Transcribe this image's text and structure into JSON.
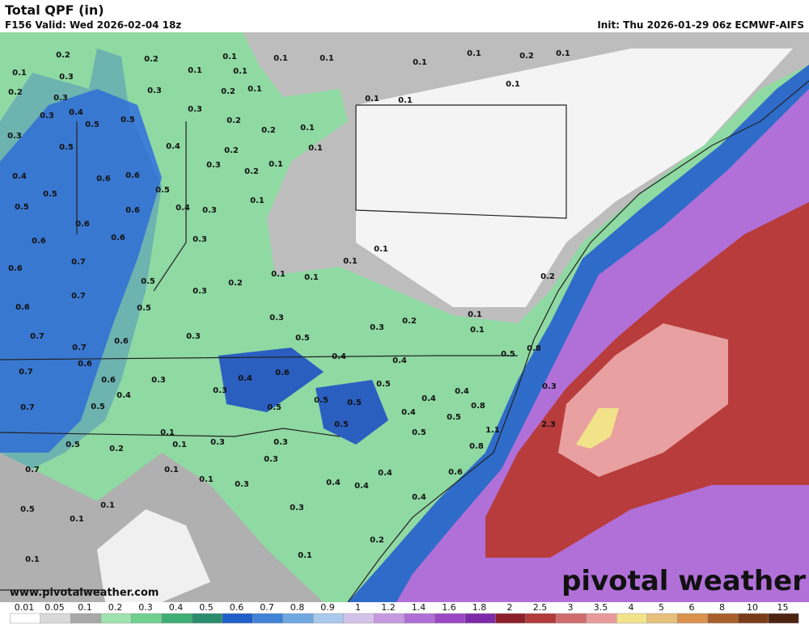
{
  "header": {
    "title": "Total QPF (in)",
    "valid": "F156 Valid: Wed 2026-02-04 18z",
    "init": "Init: Thu 2026-01-29 06z ECMWF-AIFS"
  },
  "footer": {
    "website": "www.pivotalweather.com",
    "brand": "pivotal weather"
  },
  "colorbar": {
    "labels": [
      "0.01",
      "0.05",
      "0.1",
      "0.2",
      "0.3",
      "0.4",
      "0.5",
      "0.6",
      "0.7",
      "0.8",
      "0.9",
      "1",
      "1.2",
      "1.4",
      "1.6",
      "1.8",
      "2",
      "2.5",
      "3",
      "3.5",
      "4",
      "5",
      "6",
      "8",
      "10",
      "15"
    ],
    "colors": [
      "#ffffff",
      "#d9d9d9",
      "#a8a8a8",
      "#9fe3ae",
      "#6fcf8c",
      "#3fae74",
      "#2b8c6e",
      "#1f5fc8",
      "#3f82d6",
      "#6ea7e0",
      "#a9c9ec",
      "#d3c2ea",
      "#c69ae0",
      "#b06fd6",
      "#9a48c4",
      "#7d2aa8",
      "#8c1f2a",
      "#b23a3a",
      "#cf6b6b",
      "#e89a9a",
      "#f2e38a",
      "#e6c07a",
      "#d9914c",
      "#a8602a",
      "#7a3c18",
      "#4d2410"
    ]
  },
  "map": {
    "labels": [
      "0.2",
      "0.2",
      "0.1",
      "0.1",
      "0.1",
      "0.1",
      "0.1",
      "0.2",
      "0.1",
      "0.1",
      "0.3",
      "0.1",
      "0.1",
      "0.2",
      "0.3",
      "0.3",
      "0.2",
      "0.1",
      "0.1",
      "0.1",
      "0.1",
      "0.4",
      "0.3",
      "0.5",
      "0.5",
      "0.3",
      "0.2",
      "0.2",
      "0.1",
      "0.3",
      "0.5",
      "0.4",
      "0.2",
      "0.1",
      "0.3",
      "0.1",
      "0.2",
      "0.4",
      "0.6",
      "0.6",
      "0.5",
      "0.5",
      "0.1",
      "0.5",
      "0.6",
      "0.4",
      "0.3",
      "0.6",
      "0.6",
      "0.6",
      "0.3",
      "0.1",
      "0.7",
      "0.1",
      "0.6",
      "0.1",
      "0.1",
      "0.2",
      "0.5",
      "0.2",
      "0.3",
      "0.7",
      "0.5",
      "0.6",
      "0.1",
      "0.3",
      "0.2",
      "0.1",
      "0.3",
      "0.7",
      "0.3",
      "0.6",
      "0.5",
      "0.7",
      "0.4",
      "0.4",
      "0.5",
      "0.8",
      "0.6",
      "0.7",
      "0.6",
      "0.4",
      "0.6",
      "0.3",
      "0.5",
      "0.3",
      "0.4",
      "0.3",
      "0.4",
      "0.4",
      "0.7",
      "0.5",
      "0.5",
      "0.5",
      "0.5",
      "0.4",
      "0.8",
      "0.5",
      "2.3",
      "1.1",
      "0.5",
      "0.5",
      "0.1",
      "0.5",
      "0.2",
      "0.1",
      "0.3",
      "0.3",
      "0.8",
      "0.3",
      "0.7",
      "0.1",
      "0.4",
      "0.6",
      "0.1",
      "0.3",
      "0.4",
      "0.4",
      "0.1",
      "0.4",
      "0.5",
      "0.3",
      "0.1",
      "0.2",
      "0.1",
      "0.1"
    ]
  }
}
